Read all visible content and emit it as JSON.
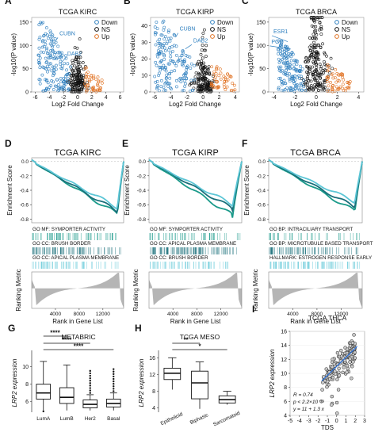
{
  "panels": {
    "A": {
      "letter": "A",
      "title": "TCGA KIRC",
      "xlabel": "Log2 Fold Change",
      "ylabel": "-log10(P value)",
      "xticks": [
        "-6",
        "-4",
        "-2",
        "0",
        "2",
        "4",
        "6"
      ],
      "yticks": [
        "0",
        "50",
        "100",
        "150"
      ],
      "legend": [
        "Down",
        "NS",
        "Up"
      ],
      "genes": [
        "CUBN",
        "DAB2"
      ]
    },
    "B": {
      "letter": "B",
      "title": "TCGA KIRP",
      "xlabel": "Log2 Fold Change",
      "ylabel": "-log10(P value)",
      "xticks": [
        "-6",
        "-4",
        "-2",
        "0",
        "2",
        "4"
      ],
      "yticks": [
        "0",
        "10",
        "20",
        "30",
        "40"
      ],
      "legend": [
        "Down",
        "NS",
        "Up"
      ],
      "genes": [
        "CUBN",
        "DAB2"
      ]
    },
    "C": {
      "letter": "C",
      "title": "TCGA BRCA",
      "xlabel": "Log2 Fold Change",
      "ylabel": "-log10(P value)",
      "xticks": [
        "-4",
        "-2",
        "0",
        "2",
        "4"
      ],
      "yticks": [
        "0",
        "50",
        "100",
        "150"
      ],
      "legend": [
        "Down",
        "NS",
        "Up"
      ],
      "genes": [
        "ESR1",
        "PGR"
      ]
    },
    "D": {
      "letter": "D",
      "title": "TCGA KIRC",
      "ylabel_es": "Enrichment Score",
      "ylabel_rm": "Ranking Metric",
      "xlabel": "Rank in Gene List",
      "es_ticks": [
        "0.0",
        "-0.2",
        "-0.4",
        "-0.6",
        "-0.8"
      ],
      "xticks": [
        "4000",
        "8000",
        "12000"
      ],
      "sets": [
        "GO MF: SYMPORTER ACTIVITY",
        "GO CC: BRUSH BORDER",
        "GO CC: APICAL PLASMA MEMBRANE"
      ]
    },
    "E": {
      "letter": "E",
      "title": "TCGA KIRP",
      "ylabel_es": "Enrichment Score",
      "ylabel_rm": "Ranking Metric",
      "xlabel": "Rank in Gene List",
      "es_ticks": [
        "0.0",
        "-0.2",
        "-0.4",
        "-0.6",
        "-0.8"
      ],
      "xticks": [
        "4000",
        "8000",
        "12000"
      ],
      "sets": [
        "GO MF: SYMPORTER ACTIVITY",
        "GO CC: APICAL PLASMA MEMBRANE",
        "GO CC: BRUSH BORDER"
      ]
    },
    "F": {
      "letter": "F",
      "title": "TCGA BRCA",
      "ylabel_es": "Enrichment Score",
      "ylabel_rm": "Ranking Metric",
      "xlabel": "Rank in Gene List",
      "es_ticks": [
        "0.0",
        "-0.2",
        "-0.4",
        "-0.6",
        "-0.8"
      ],
      "xticks": [
        "4000",
        "8000",
        "12000"
      ],
      "sets": [
        "GO BP: INTRACILIARY TRANSPORT",
        "GO BP: MICROTUBULE BASED TRANSPORT",
        "HALLMARK: ESTROGEN RESPONSE EARLY"
      ]
    },
    "G": {
      "letter": "G",
      "title": "METABRIC",
      "ylabel": "LRP2 expression",
      "yticks": [
        "6",
        "8",
        "10"
      ],
      "sig": [
        "****",
        "****",
        "****"
      ]
    },
    "H": {
      "letter": "H",
      "title": "TCGA MESO",
      "ylabel": "LRP2 expression",
      "yticks": [
        "4",
        "8",
        "12",
        "16"
      ],
      "sig": [
        "**",
        "*"
      ]
    },
    "I": {
      "letter": "I",
      "title": "TCGA THCA",
      "ylabel": "LRP2 expression",
      "xlabel": "TDS",
      "xticks": [
        "-5",
        "-4",
        "-3",
        "-2",
        "-1",
        "0",
        "1",
        "2",
        "3"
      ],
      "yticks": [
        "4",
        "6",
        "8",
        "10",
        "12",
        "14",
        "16"
      ],
      "stats": [
        "R = 0.74",
        "p < 2.2×10⁻¹⁶",
        "y = 11 + 1.3 x"
      ]
    }
  },
  "colors": {
    "down": "#2e7fbf",
    "ns": "#111111",
    "up": "#e07020",
    "es1": "#1a9a8a",
    "es2": "#1a6f7a",
    "es3": "#5cc6d6",
    "metric": "#b5b5b5",
    "fit": "#2b6fd6"
  },
  "chart_data": [
    {
      "type": "scatter",
      "panel": "A",
      "title": "TCGA KIRC",
      "xlabel": "Log2 Fold Change",
      "ylabel": "-log10(P value)",
      "xlim": [
        -6.5,
        6.5
      ],
      "ylim": [
        0,
        160
      ],
      "series": [
        {
          "name": "Down"
        },
        {
          "name": "NS"
        },
        {
          "name": "Up"
        }
      ],
      "annotations": [
        "CUBN",
        "DAB2"
      ],
      "legend_position": "top-right"
    },
    {
      "type": "scatter",
      "panel": "B",
      "title": "TCGA KIRP",
      "xlabel": "Log2 Fold Change",
      "ylabel": "-log10(P value)",
      "xlim": [
        -6.5,
        4.5
      ],
      "ylim": [
        0,
        45
      ],
      "series": [
        {
          "name": "Down"
        },
        {
          "name": "NS"
        },
        {
          "name": "Up"
        }
      ],
      "annotations": [
        "CUBN",
        "DAB2"
      ],
      "legend_position": "top-right"
    },
    {
      "type": "scatter",
      "panel": "C",
      "title": "TCGA BRCA",
      "xlabel": "Log2 Fold Change",
      "ylabel": "-log10(P value)",
      "xlim": [
        -4.5,
        4.5
      ],
      "ylim": [
        0,
        160
      ],
      "series": [
        {
          "name": "Down"
        },
        {
          "name": "NS"
        },
        {
          "name": "Up"
        }
      ],
      "annotations": [
        "ESR1",
        "PGR"
      ],
      "legend_position": "top-right"
    },
    {
      "type": "line",
      "panel": "D",
      "title": "TCGA KIRC",
      "ylabel": "Enrichment Score",
      "xlabel": "Rank in Gene List",
      "ylim": [
        -0.85,
        0.05
      ],
      "series": [
        {
          "name": "GO MF: SYMPORTER ACTIVITY",
          "min_es": -0.76
        },
        {
          "name": "GO CC: BRUSH BORDER",
          "min_es": -0.72
        },
        {
          "name": "GO CC: APICAL PLASMA MEMBRANE",
          "min_es": -0.66
        }
      ]
    },
    {
      "type": "line",
      "panel": "E",
      "title": "TCGA KIRP",
      "ylabel": "Enrichment Score",
      "xlabel": "Rank in Gene List",
      "ylim": [
        -0.85,
        0.05
      ],
      "series": [
        {
          "name": "GO MF: SYMPORTER ACTIVITY",
          "min_es": -0.78
        },
        {
          "name": "GO CC: APICAL PLASMA MEMBRANE",
          "min_es": -0.68
        },
        {
          "name": "GO CC: BRUSH BORDER",
          "min_es": -0.62
        }
      ]
    },
    {
      "type": "line",
      "panel": "F",
      "title": "TCGA BRCA",
      "ylabel": "Enrichment Score",
      "xlabel": "Rank in Gene List",
      "ylim": [
        -0.85,
        0.05
      ],
      "series": [
        {
          "name": "GO BP: INTRACILIARY TRANSPORT",
          "min_es": -0.72
        },
        {
          "name": "GO BP: MICROTUBULE BASED TRANSPORT",
          "min_es": -0.66
        },
        {
          "name": "HALLMARK: ESTROGEN RESPONSE EARLY",
          "min_es": -0.58
        }
      ]
    },
    {
      "type": "box",
      "panel": "G",
      "title": "METABRIC",
      "ylabel": "LRP2 expression",
      "categories": [
        "LumA",
        "LumB",
        "Her2",
        "Basal"
      ],
      "boxes": [
        {
          "q1": 6.3,
          "median": 7.0,
          "q3": 8.0,
          "lo": 5.0,
          "hi": 10.6
        },
        {
          "q1": 5.8,
          "median": 6.5,
          "q3": 7.6,
          "lo": 5.0,
          "hi": 10.2
        },
        {
          "q1": 5.3,
          "median": 5.7,
          "q3": 6.2,
          "lo": 5.0,
          "hi": 6.8
        },
        {
          "q1": 5.4,
          "median": 5.8,
          "q3": 6.3,
          "lo": 5.0,
          "hi": 7.0
        }
      ],
      "ylim": [
        4.8,
        11.5
      ],
      "significance": [
        "****",
        "****",
        "****"
      ]
    },
    {
      "type": "box",
      "panel": "H",
      "title": "TCGA MESO",
      "ylabel": "LRP2 expression",
      "categories": [
        "Epithelioid",
        "Biphasic",
        "Sarcomatoid"
      ],
      "boxes": [
        {
          "q1": 10.8,
          "median": 12.3,
          "q3": 13.5,
          "lo": 8.4,
          "hi": 16.0
        },
        {
          "q1": 6.2,
          "median": 10.0,
          "q3": 12.8,
          "lo": 3.8,
          "hi": 15.0
        },
        {
          "q1": 5.2,
          "median": 6.0,
          "q3": 6.9,
          "lo": 4.8,
          "hi": 8.0
        }
      ],
      "ylim": [
        3,
        17
      ],
      "significance": [
        "**",
        "*"
      ]
    },
    {
      "type": "scatter",
      "panel": "I",
      "title": "TCGA THCA",
      "xlabel": "TDS",
      "ylabel": "LRP2 expression",
      "xlim": [
        -5,
        3
      ],
      "ylim": [
        4,
        16
      ],
      "fit": {
        "intercept": 11,
        "slope": 1.3
      },
      "R": 0.74
    }
  ]
}
